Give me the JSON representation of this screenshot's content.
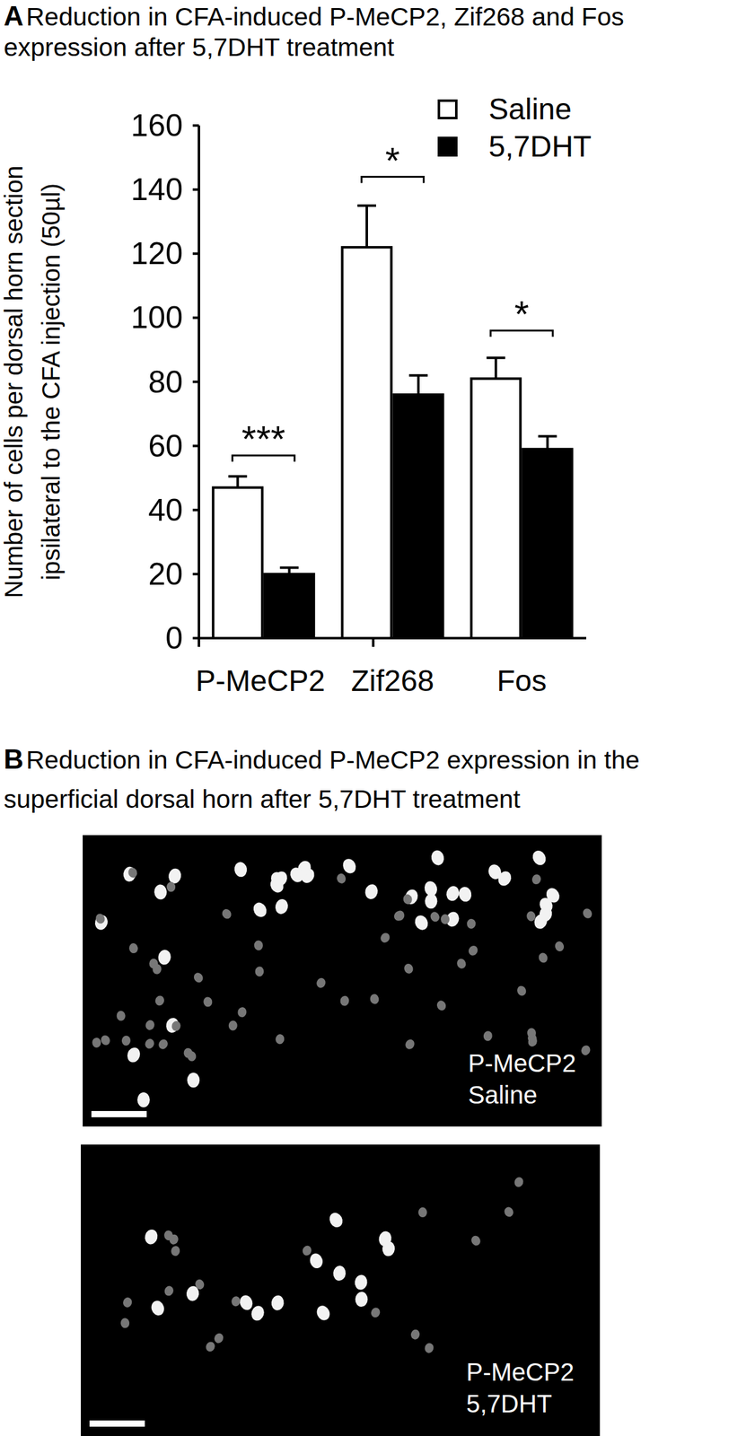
{
  "chart_data": {
    "type": "bar",
    "label": "A",
    "title": [
      "Reduction in CFA-induced P-MeCP2, Zif268 and Fos",
      "expression after 5,7DHT treatment"
    ],
    "ylabel": [
      "Number of cells per dorsal horn section",
      "ipsilateral to the CFA injection (50µl)"
    ],
    "categories": [
      "P-MeCP2",
      "Zif268",
      "Fos"
    ],
    "series": [
      {
        "name": "Saline",
        "color": "#ffffff",
        "values": [
          47,
          122,
          81
        ],
        "errors": [
          3.5,
          13,
          6.5
        ]
      },
      {
        "name": "5,7DHT",
        "color": "#000000",
        "values": [
          20,
          76,
          59
        ],
        "errors": [
          2,
          6,
          4
        ]
      }
    ],
    "ylim": [
      0,
      160
    ],
    "yticks": [
      0,
      20,
      40,
      60,
      80,
      100,
      120,
      140,
      160
    ],
    "legend": "upper right",
    "annotations": [
      {
        "text": "***",
        "category": 0,
        "y": 57
      },
      {
        "text": "*",
        "category": 1,
        "y": 144
      },
      {
        "text": "*",
        "category": 2,
        "y": 96
      }
    ]
  },
  "panel_b": {
    "label": "B",
    "title": [
      "Reduction in CFA-induced P-MeCP2 expression in the",
      "superficial dorsal horn after 5,7DHT treatment"
    ],
    "images": [
      {
        "label": [
          "P-MeCP2",
          "Saline"
        ]
      },
      {
        "label": [
          "P-MeCP2",
          "5,7DHT"
        ]
      }
    ]
  }
}
